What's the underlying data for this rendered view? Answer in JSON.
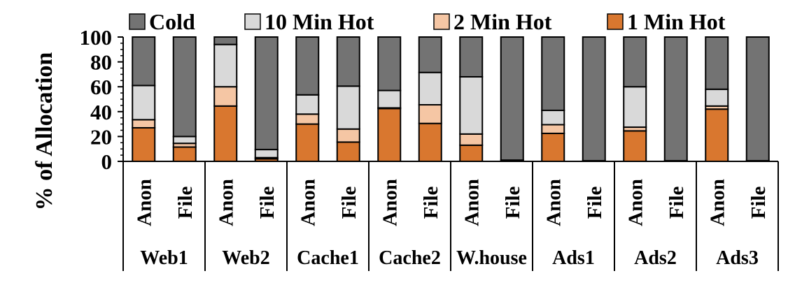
{
  "chart_data": {
    "type": "bar",
    "stacked": true,
    "ylabel": "% of Allocation",
    "ylim": [
      0,
      100
    ],
    "yticks": [
      "0",
      "20",
      "40",
      "60",
      "80",
      "100"
    ],
    "legend": {
      "placement": "top",
      "entries": [
        "Cold",
        "10 Min Hot",
        "2 Min Hot",
        "1 Min Hot"
      ]
    },
    "groups": [
      "Web1",
      "Web2",
      "Cache1",
      "Cache2",
      "W.house",
      "Ads1",
      "Ads2",
      "Ads3"
    ],
    "categories": [
      "Anon",
      "File",
      "Anon",
      "File",
      "Anon",
      "File",
      "Anon",
      "File",
      "Anon",
      "File",
      "Anon",
      "File",
      "Anon",
      "File",
      "Anon",
      "File"
    ],
    "series": [
      {
        "name": "1 Min Hot",
        "color": "#d9772f",
        "values": [
          27,
          11.5,
          44.5,
          2,
          30,
          15.5,
          42.5,
          30.5,
          13,
          1,
          22.5,
          0.5,
          24.5,
          0.5,
          42,
          0.5
        ]
      },
      {
        "name": "2 Min Hot",
        "color": "#f5c6a4",
        "values": [
          6.5,
          3,
          15.5,
          1,
          8,
          10.5,
          0.5,
          15,
          9,
          0,
          7,
          0,
          3,
          0,
          2.5,
          0
        ]
      },
      {
        "name": "10 Min Hot",
        "color": "#d9d9d9",
        "values": [
          27.5,
          5.5,
          34,
          6.5,
          15.5,
          34.5,
          14,
          26,
          46,
          0,
          11.5,
          0,
          32.5,
          0,
          13.5,
          0
        ]
      },
      {
        "name": "Cold",
        "color": "#737373",
        "values": [
          39,
          80,
          6,
          90.5,
          46.5,
          39.5,
          43,
          28.5,
          32,
          99,
          59,
          99.5,
          40,
          99.5,
          42,
          99.5
        ]
      }
    ]
  }
}
